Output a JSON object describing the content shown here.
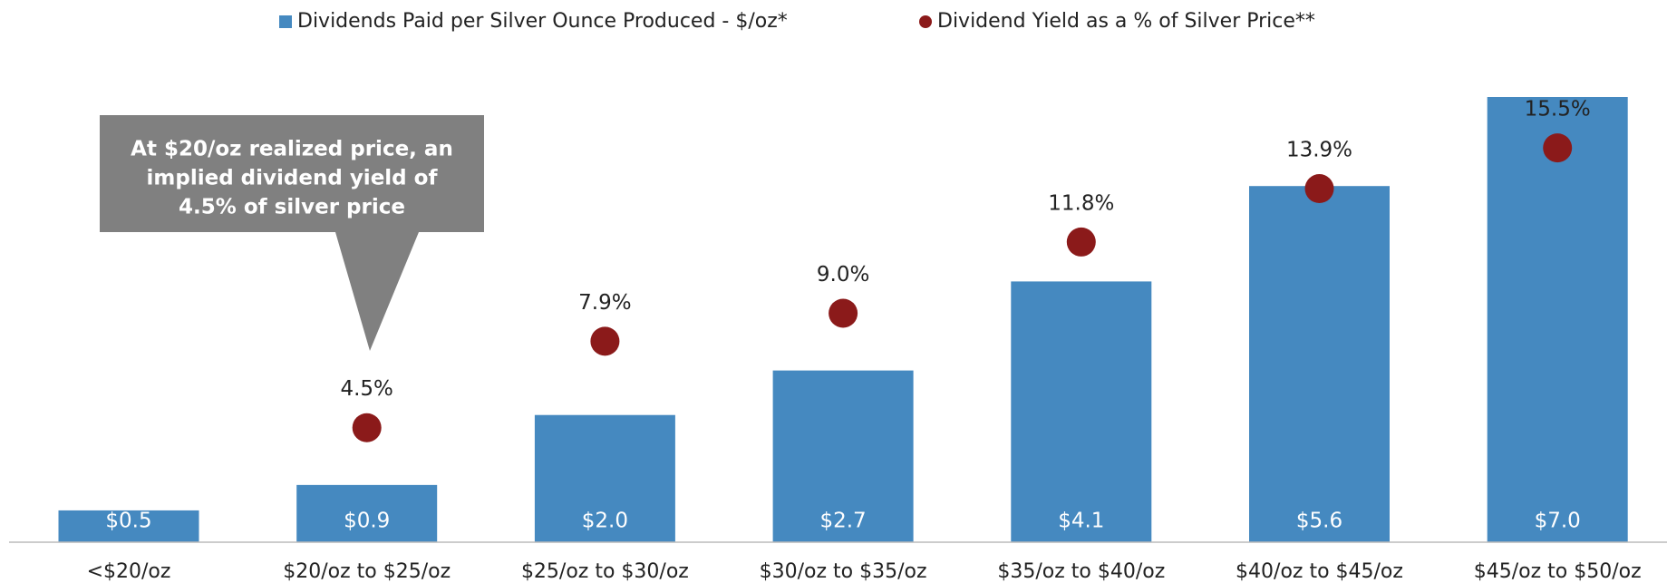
{
  "chart_data": {
    "type": "bar_dot",
    "categories": [
      "<$20/oz",
      "$20/oz to $25/oz",
      "$25/oz to $30/oz",
      "$30/oz to $35/oz",
      "$35/oz to $40/oz",
      "$40/oz to $45/oz",
      "$45/oz to $50/oz"
    ],
    "series": [
      {
        "name": "Dividends Paid per Silver Ounce Produced - $/oz*",
        "color": "#4589c0",
        "type": "bar",
        "values": [
          0.5,
          0.9,
          2.0,
          2.7,
          4.1,
          5.6,
          7.0
        ],
        "value_labels": [
          "$0.5",
          "$0.9",
          "$2.0",
          "$2.7",
          "$4.1",
          "$5.6",
          "$7.0"
        ]
      },
      {
        "name": "Dividend Yield as a % of Silver Price**",
        "color": "#8b1a1a",
        "type": "dot",
        "axis": "y2",
        "values": [
          null,
          4.5,
          7.9,
          9.0,
          11.8,
          13.9,
          15.5
        ],
        "value_labels": [
          null,
          "4.5%",
          "7.9%",
          "9.0%",
          "11.8%",
          "13.9%",
          "15.5%"
        ]
      }
    ],
    "ylim": [
      0,
      7.0
    ],
    "y2lim": [
      0,
      17.5
    ],
    "annotation": [
      "At $20/oz realized price, an",
      "implied dividend yield of",
      "4.5% of silver price"
    ]
  }
}
